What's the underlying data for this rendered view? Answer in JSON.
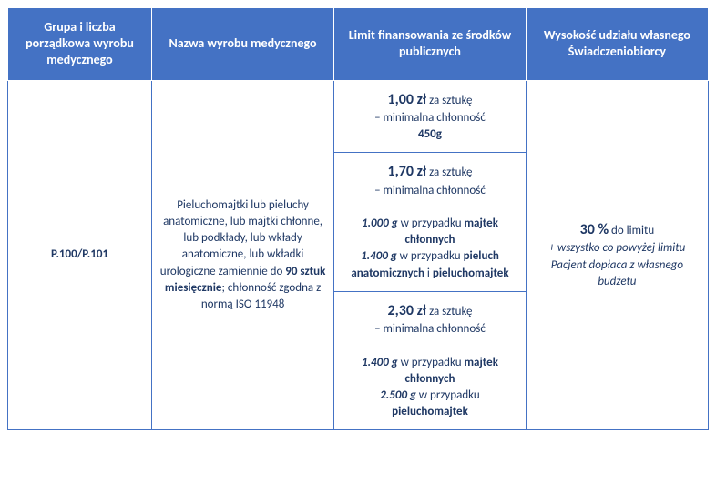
{
  "headers": {
    "col1": "Grupa i liczba porządkowa wyrobu medycznego",
    "col2": "Nazwa wyrobu medycznego",
    "col3": "Limit finansowania ze środków publicznych",
    "col4": "Wysokość udziału własnego Świadczeniobiorcy"
  },
  "row": {
    "code": "P.100/P.101",
    "product_desc_1": "Pieluchomajtki lub pieluchy anatomiczne, lub majtki chłonne, lub podkłady, lub wkłady anatomiczne, lub wkładki urologiczne zamiennie do ",
    "product_qty": "90 sztuk miesięcznie",
    "product_desc_2": "; chłonność zgodna z normą ISO 11948",
    "limit1": {
      "price": "1,00 zł",
      "per": " za sztukę",
      "line2": "– minimalna chłonność",
      "weight": "450g"
    },
    "limit2": {
      "price": "1,70 zł",
      "per": " za sztukę",
      "line2": "– minimalna chłonność",
      "w1": "1.000 g",
      "w1_text": " w przypadku ",
      "w1_item": "majtek chłonnych",
      "w2": "1.400 g",
      "w2_text": " w przypadku ",
      "w2_item1": "pieluch anatomicznych",
      "w2_and": " i ",
      "w2_item2": "pieluchomajtek"
    },
    "limit3": {
      "price": "2,30 zł",
      "per": " za sztukę",
      "line2": "– minimalna chłonność",
      "w1": "1.400 g",
      "w1_text": " w przypadku ",
      "w1_item": "majtek chłonnych",
      "w2": "2.500 g",
      "w2_text": " w przypadku ",
      "w2_item": "pieluchomajtek"
    },
    "share": {
      "percent": "30 %",
      "percent_text": " do limitu",
      "extra": "+ wszystko co powyżej limitu Pacjent dopłaca z własnego budżetu"
    }
  }
}
